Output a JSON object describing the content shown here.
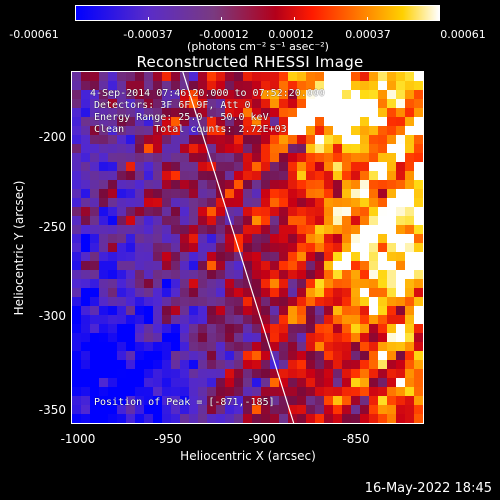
{
  "colorbar": {
    "ticks": [
      "-0.00061",
      "-0.00037",
      "-0.00012",
      "0.00012",
      "0.00037",
      "0.00061"
    ],
    "unit_label": "(photons cm⁻² s⁻¹ asec⁻²)"
  },
  "title": "Reconstructed RHESSI Image",
  "annotations": {
    "time_range": "4-Sep-2014 07:46:20.000 to 07:52:20.000",
    "detectors": "Detectors: 3F 6F 9F, Att 0",
    "energy": "Energy Range: 25.0 - 50.0 keV",
    "clean": "Clean     Total counts: 2.72E+03",
    "peak": "Position of Peak = [-871,-185]"
  },
  "axes": {
    "xlabel": "Heliocentric X (arcsec)",
    "ylabel": "Heliocentric Y (arcsec)",
    "xticks": [
      "-1000",
      "-950",
      "-900",
      "-850"
    ],
    "yticks": [
      "-200",
      "-250",
      "-300",
      "-350"
    ],
    "xlim": [
      -1000,
      -810
    ],
    "ylim": [
      -357,
      -168
    ]
  },
  "timestamp": "16-May-2022 18:45",
  "colors": {
    "background": "#000000",
    "low": "#0000ff",
    "mid": "#b3001a",
    "high": "#ffffff"
  },
  "chart_data": {
    "type": "heatmap",
    "title": "Reconstructed RHESSI Image",
    "xlabel": "Heliocentric X (arcsec)",
    "ylabel": "Heliocentric Y (arcsec)",
    "xlim": [
      -1000,
      -810
    ],
    "ylim": [
      -357,
      -168
    ],
    "color_range": [
      -0.00061,
      0.00061
    ],
    "peak_position": [
      -871,
      -185
    ],
    "limb_line": [
      [
        -940,
        -168
      ],
      [
        -880,
        -357
      ]
    ]
  }
}
